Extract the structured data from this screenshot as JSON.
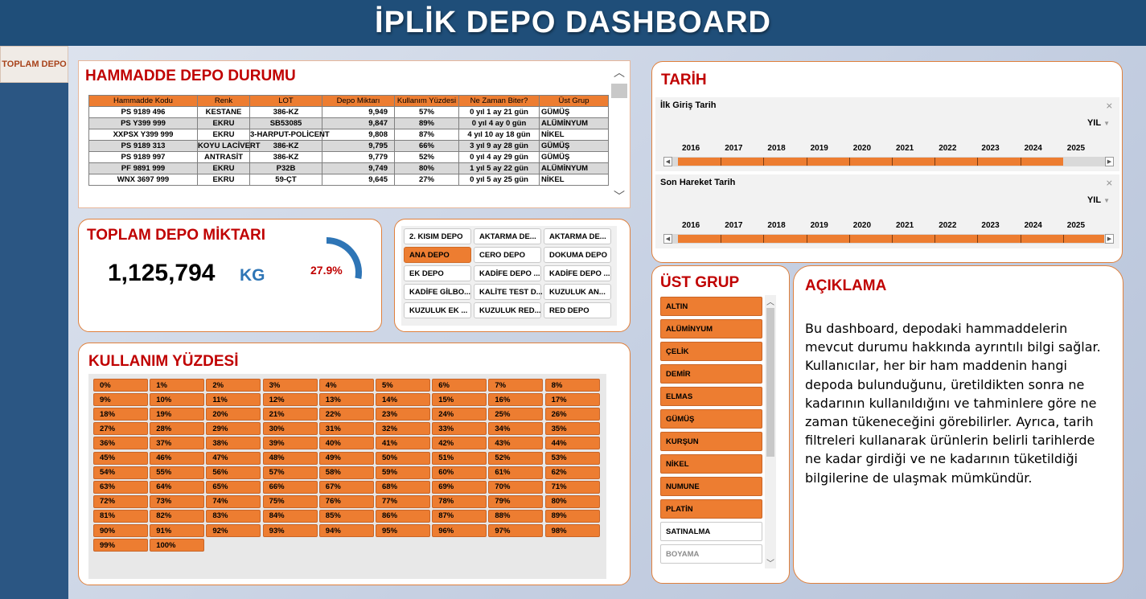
{
  "header": {
    "title": "İPLİK DEPO DASHBOARD"
  },
  "sidebar": {
    "button_label": "TOPLAM DEPO"
  },
  "hammadde": {
    "title": "HAMMADDE DEPO DURUMU",
    "columns": [
      "Hammadde Kodu",
      "Renk",
      "LOT",
      "Depo Miktarı",
      "Kullanım Yüzdesi",
      "Ne Zaman Biter?",
      "Üst Grup"
    ],
    "rows": [
      [
        "PS 9189 496",
        "KESTANE",
        "386-KZ",
        "9,949",
        "57%",
        "0 yıl 1 ay 21 gün",
        "GÜMÜŞ"
      ],
      [
        "PS Y399 999",
        "EKRU",
        "SB53085",
        "9,847",
        "89%",
        "0 yıl 4 ay 0 gün",
        "ALÜMİNYUM"
      ],
      [
        "XXPSX Y399 999",
        "EKRU",
        "3-HARPUT-POLİCENT",
        "9,808",
        "87%",
        "4 yıl 10 ay 18 gün",
        "NİKEL"
      ],
      [
        "PS 9189 313",
        "KOYU LACİVERT",
        "386-KZ",
        "9,795",
        "66%",
        "3 yıl 9 ay 28 gün",
        "GÜMÜŞ"
      ],
      [
        "PS 9189 997",
        "ANTRASİT",
        "386-KZ",
        "9,779",
        "52%",
        "0 yıl 4 ay 29 gün",
        "GÜMÜŞ"
      ],
      [
        "PF 9891 999",
        "EKRU",
        "P32B",
        "9,749",
        "80%",
        "1 yıl 5 ay 22 gün",
        "ALÜMİNYUM"
      ],
      [
        "WNX 3697 999",
        "EKRU",
        "59-ÇT",
        "9,645",
        "27%",
        "0 yıl 5 ay 25 gün",
        "NİKEL"
      ]
    ]
  },
  "toplam": {
    "title": "TOPLAM DEPO MİKTARI",
    "value": "1,125,794",
    "unit": "KG",
    "gauge_label": "27.9%",
    "gauge_fraction": 0.279
  },
  "depolar": {
    "items": [
      {
        "label": "2. KISIM DEPO",
        "selected": false
      },
      {
        "label": "AKTARMA DE...",
        "selected": false
      },
      {
        "label": "AKTARMA DE...",
        "selected": false
      },
      {
        "label": "ANA DEPO",
        "selected": true
      },
      {
        "label": "CERO DEPO",
        "selected": false
      },
      {
        "label": "DOKUMA DEPO",
        "selected": false
      },
      {
        "label": "EK DEPO",
        "selected": false
      },
      {
        "label": "KADİFE DEPO ...",
        "selected": false
      },
      {
        "label": "KADİFE DEPO ...",
        "selected": false
      },
      {
        "label": "KADİFE GİLBO...",
        "selected": false
      },
      {
        "label": "KALİTE TEST D...",
        "selected": false
      },
      {
        "label": "KUZULUK AN...",
        "selected": false
      },
      {
        "label": "KUZULUK EK ...",
        "selected": false
      },
      {
        "label": "KUZULUK RED...",
        "selected": false
      },
      {
        "label": "RED DEPO",
        "selected": false
      }
    ]
  },
  "kullanim": {
    "title": "KULLANIM YÜZDESİ",
    "items": [
      "0%",
      "1%",
      "2%",
      "3%",
      "4%",
      "5%",
      "6%",
      "7%",
      "8%",
      "9%",
      "10%",
      "11%",
      "12%",
      "13%",
      "14%",
      "15%",
      "16%",
      "17%",
      "18%",
      "19%",
      "20%",
      "21%",
      "22%",
      "23%",
      "24%",
      "25%",
      "26%",
      "27%",
      "28%",
      "29%",
      "30%",
      "31%",
      "32%",
      "33%",
      "34%",
      "35%",
      "36%",
      "37%",
      "38%",
      "39%",
      "40%",
      "41%",
      "42%",
      "43%",
      "44%",
      "45%",
      "46%",
      "47%",
      "48%",
      "49%",
      "50%",
      "51%",
      "52%",
      "53%",
      "54%",
      "55%",
      "56%",
      "57%",
      "58%",
      "59%",
      "60%",
      "61%",
      "62%",
      "63%",
      "64%",
      "65%",
      "66%",
      "67%",
      "68%",
      "69%",
      "70%",
      "71%",
      "72%",
      "73%",
      "74%",
      "75%",
      "76%",
      "77%",
      "78%",
      "79%",
      "80%",
      "81%",
      "82%",
      "83%",
      "84%",
      "85%",
      "86%",
      "87%",
      "88%",
      "89%",
      "90%",
      "91%",
      "92%",
      "93%",
      "94%",
      "95%",
      "96%",
      "97%",
      "98%",
      "99%",
      "100%"
    ]
  },
  "tarih": {
    "title": "TARİH",
    "level": "YIL",
    "years": [
      "2016",
      "2017",
      "2018",
      "2019",
      "2020",
      "2021",
      "2022",
      "2023",
      "2024",
      "2025"
    ],
    "timelines": [
      {
        "label": "İlk Giriş Tarih",
        "selected_years": [
          "2016",
          "2017",
          "2018",
          "2019",
          "2020",
          "2021",
          "2022",
          "2023",
          "2024"
        ]
      },
      {
        "label": "Son Hareket Tarih",
        "selected_years": [
          "2016",
          "2017",
          "2018",
          "2019",
          "2020",
          "2021",
          "2022",
          "2023",
          "2024",
          "2025"
        ]
      }
    ]
  },
  "ust_grup": {
    "title": "ÜST GRUP",
    "items": [
      {
        "label": "ALTIN",
        "state": "selected"
      },
      {
        "label": "ALÜMİNYUM",
        "state": "selected"
      },
      {
        "label": "ÇELİK",
        "state": "selected"
      },
      {
        "label": "DEMİR",
        "state": "selected"
      },
      {
        "label": "ELMAS",
        "state": "selected"
      },
      {
        "label": "GÜMÜŞ",
        "state": "selected"
      },
      {
        "label": "KURŞUN",
        "state": "selected"
      },
      {
        "label": "NİKEL",
        "state": "selected"
      },
      {
        "label": "NUMUNE",
        "state": "selected"
      },
      {
        "label": "PLATİN",
        "state": "selected"
      },
      {
        "label": "SATINALMA",
        "state": "unselected"
      },
      {
        "label": "BOYAMA",
        "state": "nodata"
      }
    ]
  },
  "aciklama": {
    "title": "AÇIKLAMA",
    "text": "Bu dashboard, depodaki hammaddelerin mevcut durumu hakkında ayrıntılı bilgi sağlar. Kullanıcılar, her bir ham maddenin hangi depoda bulunduğunu, üretildikten sonra ne kadarının kullanıldığını ve tahminlere göre ne zaman tükeneceğini görebilirler. Ayrıca, tarih filtreleri kullanarak ürünlerin belirli tarihlerde ne kadar girdiği ve ne kadarının tüketildiği bilgilerine de ulaşmak mümkündür."
  },
  "colors": {
    "accent": "#ed7d31",
    "title_red": "#c00000",
    "header_blue": "#1f4e79",
    "unit_blue": "#2e75b6"
  }
}
